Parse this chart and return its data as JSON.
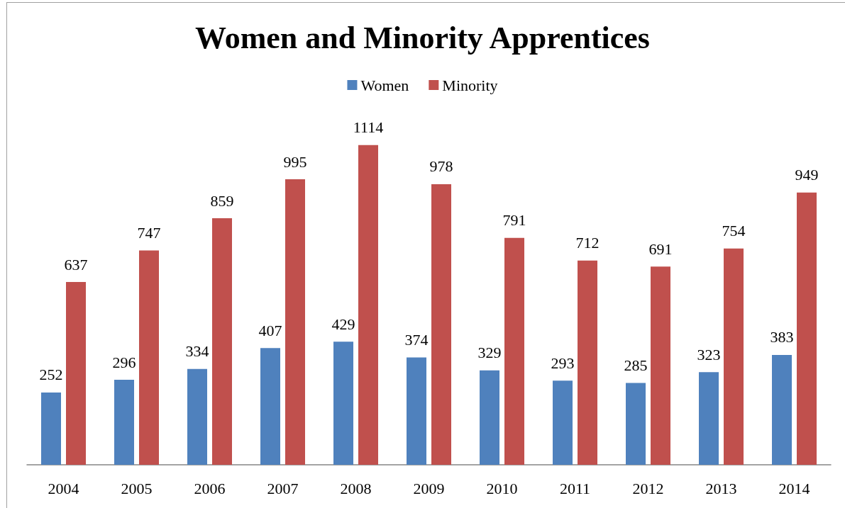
{
  "chart_data": {
    "type": "bar",
    "title": "Women and Minority Apprentices",
    "categories": [
      "2004",
      "2005",
      "2006",
      "2007",
      "2008",
      "2009",
      "2010",
      "2011",
      "2012",
      "2013",
      "2014"
    ],
    "series": [
      {
        "name": "Women",
        "color": "#4f81bd",
        "values": [
          252,
          296,
          334,
          407,
          429,
          374,
          329,
          293,
          285,
          323,
          383
        ]
      },
      {
        "name": "Minority",
        "color": "#c0504d",
        "values": [
          637,
          747,
          859,
          995,
          1114,
          978,
          791,
          712,
          691,
          754,
          949
        ]
      }
    ],
    "data_labels": true,
    "legend": "top",
    "grid": false
  }
}
